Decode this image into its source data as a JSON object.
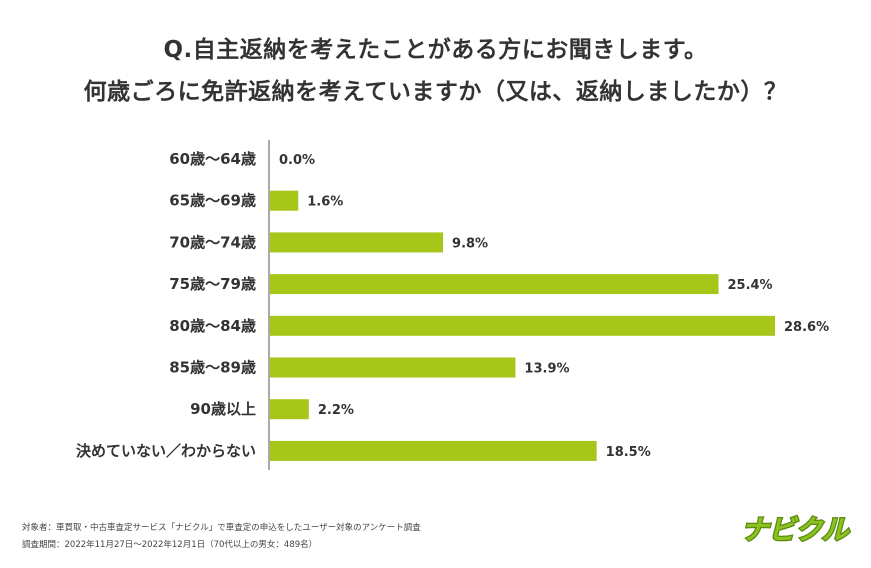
{
  "chart_data": {
    "type": "bar",
    "orientation": "horizontal",
    "title_line1": "Q.自主返納を考えたことがある方にお聞きします。",
    "title_line2": "何歳ごろに免許返納を考えていますか（又は、返納しましたか）？",
    "categories": [
      "60歳～64歳",
      "65歳～69歳",
      "70歳～74歳",
      "75歳～79歳",
      "80歳～84歳",
      "85歳～89歳",
      "90歳以上",
      "決めていない／わからない"
    ],
    "values": [
      0.0,
      1.6,
      9.8,
      25.4,
      28.6,
      13.9,
      2.2,
      18.5
    ],
    "value_labels": [
      "0.0%",
      "1.6%",
      "9.8%",
      "25.4%",
      "28.6%",
      "13.9%",
      "2.2%",
      "18.5%"
    ],
    "xlim": [
      0,
      28.6
    ],
    "grid": false,
    "bar_color": "#a6c61a"
  },
  "footnote": {
    "line1": "対象者：車買取・中古車査定サービス「ナビクル」で車査定の申込をしたユーザー対象のアンケート調査",
    "line2": "調査期間：2022年11月27日～2022年12月1日（70代以上の男女：489名）"
  },
  "logo": {
    "text": "ナビクル",
    "color": "#8cc21f"
  }
}
